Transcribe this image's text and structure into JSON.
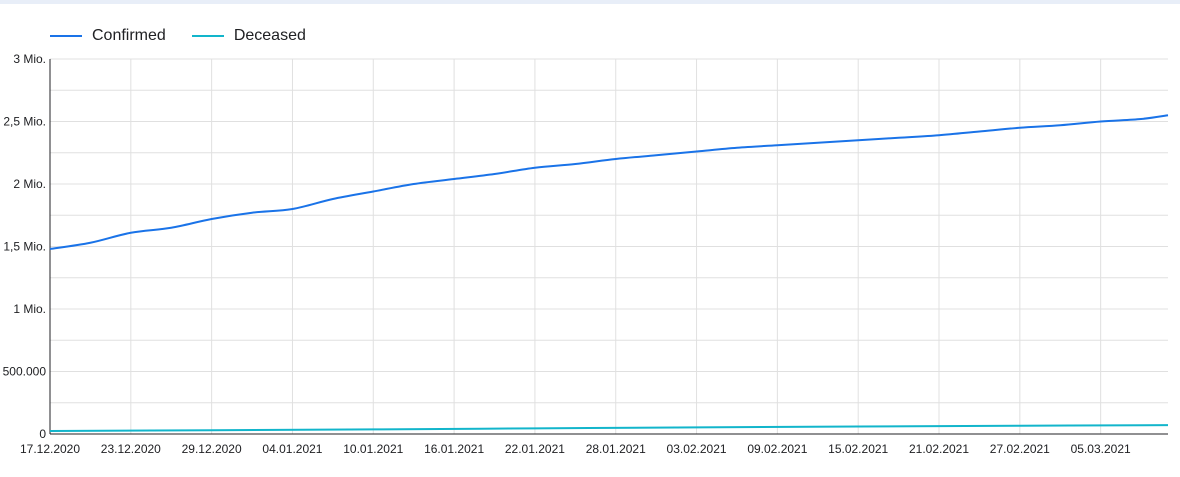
{
  "chart_data": {
    "type": "line",
    "title": "",
    "xlabel": "",
    "ylabel": "",
    "ylim": [
      0,
      3000000
    ],
    "grid": true,
    "legend_position": "top-left",
    "y_ticks": [
      0,
      500000,
      1000000,
      1500000,
      2000000,
      2500000,
      3000000
    ],
    "y_tick_labels": [
      "0",
      "500.000",
      "1 Mio.",
      "1,5 Mio.",
      "2 Mio.",
      "2,5 Mio.",
      "3 Mio."
    ],
    "x_tick_labels": [
      "17.12.2020",
      "23.12.2020",
      "29.12.2020",
      "04.01.2021",
      "10.01.2021",
      "16.01.2021",
      "22.01.2021",
      "28.01.2021",
      "03.02.2021",
      "09.02.2021",
      "15.02.2021",
      "21.02.2021",
      "27.02.2021",
      "05.03.2021"
    ],
    "x_range": [
      "2020-12-17",
      "2021-03-10"
    ],
    "series": [
      {
        "name": "Confirmed",
        "color": "#1a73e8",
        "x": [
          "2020-12-17",
          "2020-12-20",
          "2020-12-23",
          "2020-12-26",
          "2020-12-29",
          "2021-01-01",
          "2021-01-04",
          "2021-01-07",
          "2021-01-10",
          "2021-01-13",
          "2021-01-16",
          "2021-01-19",
          "2021-01-22",
          "2021-01-25",
          "2021-01-28",
          "2021-01-31",
          "2021-02-03",
          "2021-02-06",
          "2021-02-09",
          "2021-02-12",
          "2021-02-15",
          "2021-02-18",
          "2021-02-21",
          "2021-02-24",
          "2021-02-27",
          "2021-03-02",
          "2021-03-05",
          "2021-03-08",
          "2021-03-10"
        ],
        "y": [
          1480000,
          1530000,
          1610000,
          1650000,
          1720000,
          1770000,
          1800000,
          1880000,
          1940000,
          2000000,
          2040000,
          2080000,
          2130000,
          2160000,
          2200000,
          2230000,
          2260000,
          2290000,
          2310000,
          2330000,
          2350000,
          2370000,
          2390000,
          2420000,
          2450000,
          2470000,
          2500000,
          2520000,
          2550000
        ]
      },
      {
        "name": "Deceased",
        "color": "#12b5cb",
        "x": [
          "2020-12-17",
          "2020-12-29",
          "2021-01-10",
          "2021-01-22",
          "2021-02-03",
          "2021-02-15",
          "2021-02-27",
          "2021-03-10"
        ],
        "y": [
          24000,
          30000,
          37000,
          45000,
          53000,
          60000,
          66000,
          71000
        ]
      }
    ]
  }
}
